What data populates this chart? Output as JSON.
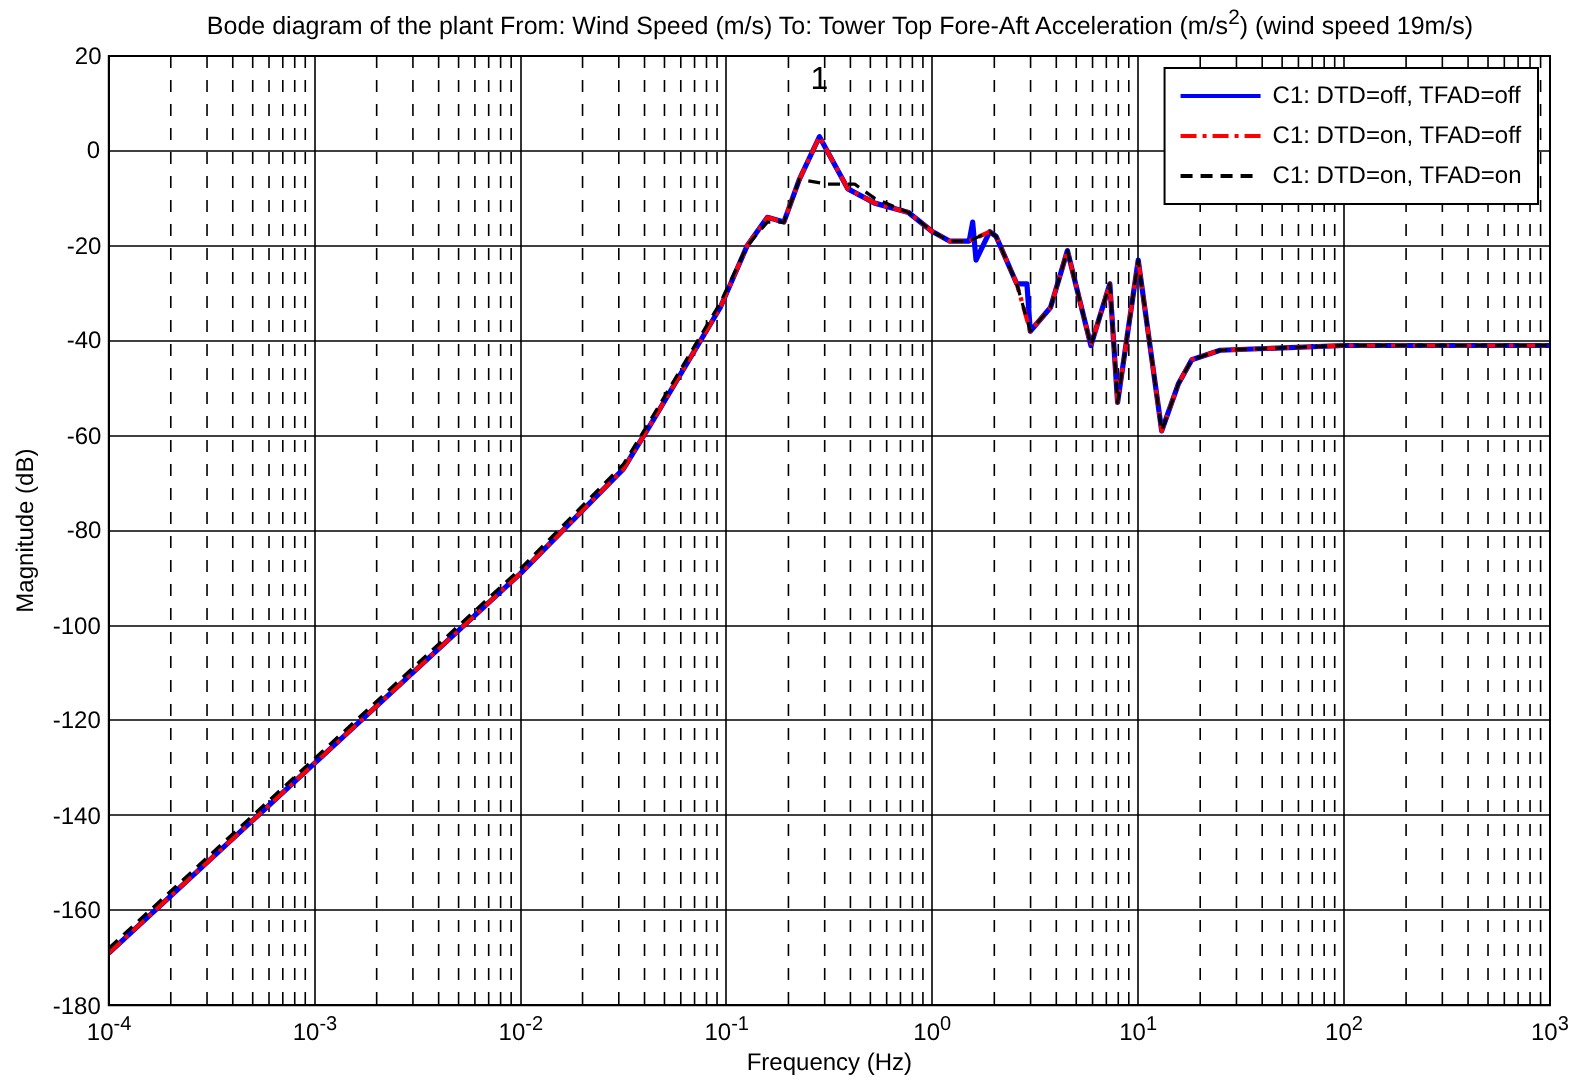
{
  "chart_data": {
    "type": "line",
    "title": "Bode diagram of the plant From: Wind Speed (m/s) To: Tower Top Fore-Aft Acceleration (m/s$^{2}$) (wind speed 19m/s)",
    "xlabel": "Frequency (Hz)",
    "ylabel": "Magnitude (dB)",
    "log": "x",
    "grid": true,
    "legend": "top right",
    "marker": "none",
    "xlim": [
      0.0001,
      1000
    ],
    "xticks": [
      {
        "value": 0.0001,
        "label": "10$^{-4}$"
      },
      {
        "value": 0.001,
        "label": "10$^{-3}$"
      },
      {
        "value": 0.01,
        "label": "10$^{-2}$"
      },
      {
        "value": 0.1,
        "label": "10$^{-1}$"
      },
      {
        "value": 1,
        "label": "10$^{0}$"
      },
      {
        "value": 10,
        "label": "10$^{1}$"
      },
      {
        "value": 100,
        "label": "10$^{2}$"
      },
      {
        "value": 1000,
        "label": "10$^{3}$"
      }
    ],
    "ylim": [
      -180,
      20
    ],
    "yticks": [
      -180,
      -160,
      -140,
      -120,
      -100,
      -80,
      -60,
      -40,
      -20,
      0,
      20
    ],
    "annotations": [
      {
        "text": "1",
        "x": 0.283,
        "y": 3
      }
    ],
    "series": [
      {
        "name": "C1: DTD=off, TFAD=off",
        "color": "#0000ff",
        "line_style": "solid",
        "x": [
          0.0001,
          0.001,
          0.01,
          0.0316,
          0.0437,
          0.0933,
          0.126,
          0.158,
          0.19,
          0.226,
          0.283,
          0.389,
          0.525,
          0.767,
          1,
          1.21,
          1.51,
          1.57,
          1.63,
          1.9,
          2.04,
          2.57,
          2.88,
          2.99,
          3.75,
          4.53,
          5.89,
          7.28,
          7.94,
          10,
          13,
          15.7,
          18.2,
          25,
          100,
          1000
        ],
        "values": [
          -169,
          -129,
          -89,
          -67,
          -57,
          -33,
          -20,
          -14,
          -15,
          -6,
          3,
          -8,
          -11,
          -13,
          -17,
          -19,
          -19,
          -15,
          -23,
          -17,
          -18,
          -28,
          -28,
          -38,
          -33,
          -21,
          -41,
          -28,
          -53,
          -23,
          -59,
          -49,
          -44,
          -42,
          -41,
          -41
        ]
      },
      {
        "name": "C1: DTD=on, TFAD=off",
        "color": "#ff0000",
        "line_style": "dashdot",
        "x": [
          0.0001,
          0.001,
          0.01,
          0.0316,
          0.0437,
          0.0933,
          0.126,
          0.158,
          0.19,
          0.226,
          0.283,
          0.389,
          0.525,
          0.767,
          1,
          1.21,
          1.51,
          1.9,
          2.04,
          2.57,
          2.99,
          3.75,
          4.53,
          5.89,
          7.28,
          7.94,
          10,
          13,
          15.7,
          18.2,
          25,
          100,
          1000
        ],
        "values": [
          -169,
          -129,
          -89,
          -67,
          -57,
          -33,
          -20,
          -14,
          -15,
          -6,
          3,
          -8,
          -11,
          -13,
          -17,
          -19,
          -19,
          -17,
          -18,
          -28,
          -38,
          -33,
          -21,
          -41,
          -28,
          -53,
          -23,
          -59,
          -49,
          -44,
          -42,
          -41,
          -41
        ]
      },
      {
        "name": "C1: DTD=on, TFAD=on",
        "color": "#000000",
        "line_style": "dashed",
        "x": [
          0.0001,
          0.001,
          0.01,
          0.0316,
          0.0437,
          0.0933,
          0.126,
          0.158,
          0.19,
          0.226,
          0.31,
          0.42,
          0.525,
          0.767,
          1,
          1.21,
          1.51,
          1.9,
          2.04,
          2.57,
          2.99,
          3.75,
          4.53,
          5.89,
          7.28,
          7.94,
          10,
          13,
          15.7,
          18.2,
          25,
          100,
          1000
        ],
        "values": [
          -168,
          -128,
          -88,
          -66,
          -56,
          -32,
          -20,
          -15,
          -15,
          -6,
          -7,
          -7,
          -10,
          -13,
          -17,
          -19,
          -19,
          -17,
          -18,
          -28,
          -38,
          -33,
          -21,
          -41,
          -28,
          -53,
          -23,
          -59,
          -49,
          -44,
          -42,
          -41,
          -41
        ]
      }
    ]
  }
}
